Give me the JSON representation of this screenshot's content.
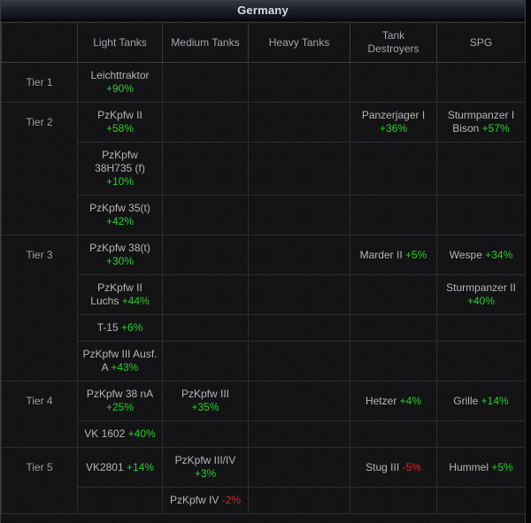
{
  "title": "Germany",
  "columns": [
    {
      "key": "tier",
      "label": ""
    },
    {
      "key": "light-tanks",
      "label": "Light Tanks"
    },
    {
      "key": "medium-tanks",
      "label": "Medium Tanks"
    },
    {
      "key": "heavy-tanks",
      "label": "Heavy Tanks"
    },
    {
      "key": "tank-destroyers",
      "label": "Tank\nDestroyers"
    },
    {
      "key": "spg",
      "label": "SPG"
    }
  ],
  "colors": {
    "positive": "#2ecc2e",
    "negative": "#d22a2a",
    "name_text": "#b6b6b6",
    "header_text": "#a2a6ab",
    "accent_border": "#2d2d2d"
  },
  "tiers": [
    {
      "label": "Tier 1",
      "rows": [
        [
          {
            "name": "Leichttraktor",
            "break": true,
            "pct": "+90%"
          },
          null,
          null,
          null,
          null
        ]
      ]
    },
    {
      "label": "Tier 2",
      "rows": [
        [
          {
            "name": "PzKpfw II",
            "break": true,
            "pct": "+58%"
          },
          null,
          null,
          {
            "name": "Panzerjager I",
            "break": true,
            "pct": "+36%"
          },
          {
            "name": "Sturmpanzer I\nBison",
            "break": false,
            "pct": "+57%"
          }
        ],
        [
          {
            "name": "PzKpfw\n38H735 (f)",
            "break": true,
            "pct": "+10%"
          },
          null,
          null,
          null,
          null
        ],
        [
          {
            "name": "PzKpfw 35(t)",
            "break": true,
            "pct": "+42%"
          },
          null,
          null,
          null,
          null
        ]
      ]
    },
    {
      "label": "Tier 3",
      "rows": [
        [
          {
            "name": "PzKpfw 38(t)",
            "break": true,
            "pct": "+30%"
          },
          null,
          null,
          {
            "name": "Marder II",
            "break": false,
            "pct": "+5%"
          },
          {
            "name": "Wespe",
            "break": false,
            "pct": "+34%"
          }
        ],
        [
          {
            "name": "PzKpfw II\nLuchs",
            "break": false,
            "pct": "+44%"
          },
          null,
          null,
          null,
          {
            "name": "Sturmpanzer II",
            "break": true,
            "pct": "+40%"
          }
        ],
        [
          {
            "name": "T-15",
            "break": false,
            "pct": "+6%"
          },
          null,
          null,
          null,
          null
        ],
        [
          {
            "name": "PzKpfw III Ausf.\nA",
            "break": false,
            "pct": "+43%"
          },
          null,
          null,
          null,
          null
        ]
      ]
    },
    {
      "label": "Tier 4",
      "rows": [
        [
          {
            "name": "PzKpfw 38 nA",
            "break": true,
            "pct": "+25%"
          },
          {
            "name": "PzKpfw III",
            "break": true,
            "pct": "+35%"
          },
          null,
          {
            "name": "Hetzer",
            "break": false,
            "pct": "+4%"
          },
          {
            "name": "Grille",
            "break": false,
            "pct": "+14%"
          }
        ],
        [
          {
            "name": "VK 1602",
            "break": false,
            "pct": "+40%"
          },
          null,
          null,
          null,
          null
        ]
      ]
    },
    {
      "label": "Tier 5",
      "rows": [
        [
          {
            "name": "VK2801",
            "break": false,
            "pct": "+14%"
          },
          {
            "name": "PzKpfw III/IV",
            "break": true,
            "pct": "+3%"
          },
          null,
          {
            "name": "Stug III",
            "break": false,
            "pct": "-5%",
            "negative": true
          },
          {
            "name": "Hummel",
            "break": false,
            "pct": "+5%"
          }
        ],
        [
          null,
          {
            "name": "PzKpfw IV",
            "break": false,
            "pct": "-2%",
            "negative": true
          },
          null,
          null,
          null
        ]
      ]
    }
  ]
}
